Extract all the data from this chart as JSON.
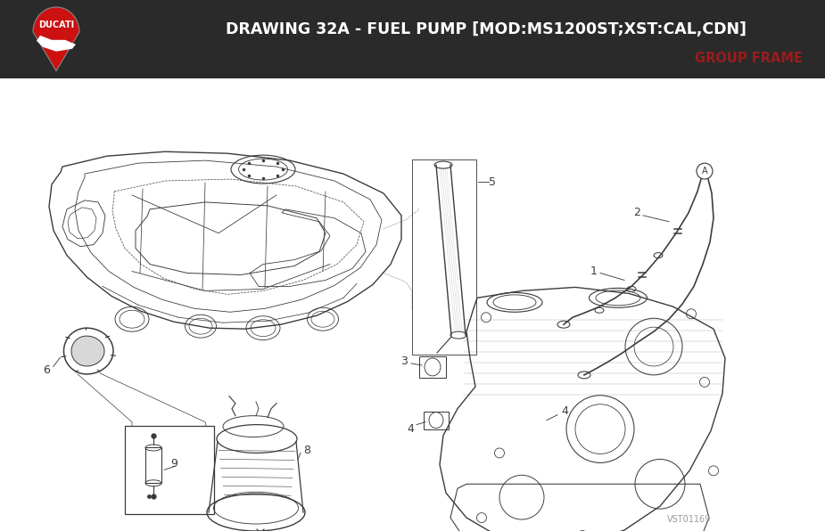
{
  "title": "DRAWING 32A - FUEL PUMP [MOD:MS1200ST;XST:CAL,CDN]",
  "subtitle": "GROUP FRAME",
  "title_color": "#ffffff",
  "subtitle_color": "#9b1c1c",
  "header_bg": "#2a2a2a",
  "body_bg": "#ffffff",
  "line_color": "#3a3a3a",
  "watermark": "VST01169",
  "fig_width": 9.25,
  "fig_height": 5.96,
  "dpi": 100
}
